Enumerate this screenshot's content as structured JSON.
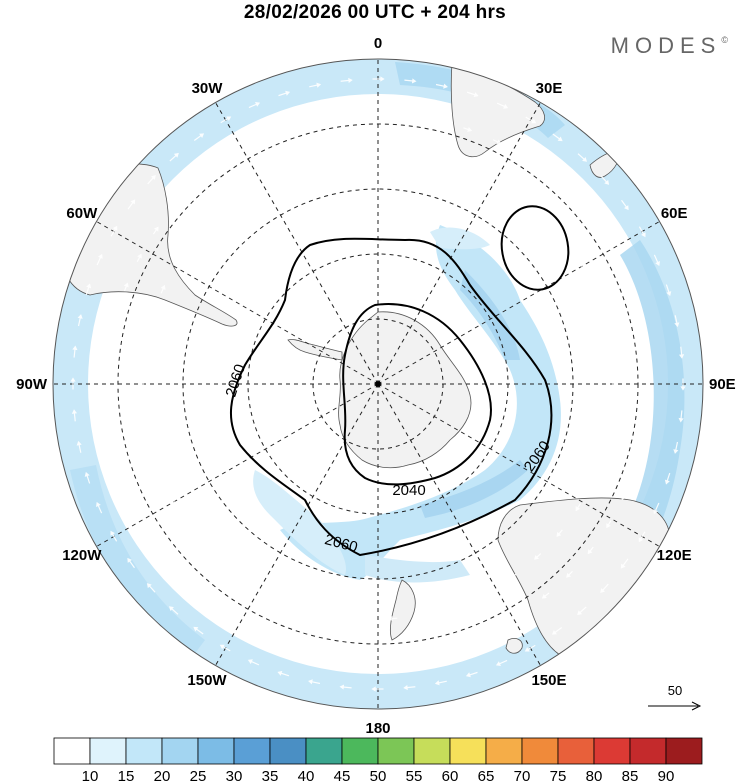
{
  "title": "28/02/2026  00 UTC  + 204 hrs",
  "brand": "MODES",
  "brand_mark": "©",
  "longitude_labels": [
    {
      "text": "0",
      "lon": 0
    },
    {
      "text": "30E",
      "lon": 30
    },
    {
      "text": "60E",
      "lon": 60
    },
    {
      "text": "90E",
      "lon": 90
    },
    {
      "text": "120E",
      "lon": 120
    },
    {
      "text": "150E",
      "lon": 150
    },
    {
      "text": "180",
      "lon": 180
    },
    {
      "text": "150W",
      "lon": -150
    },
    {
      "text": "120W",
      "lon": -120
    },
    {
      "text": "90W",
      "lon": -90
    },
    {
      "text": "60W",
      "lon": -60
    },
    {
      "text": "30W",
      "lon": -30
    }
  ],
  "contour_labels": [
    "2060",
    "2040",
    "2060",
    "2060"
  ],
  "vector_reference": "50",
  "colorbar": {
    "labels": [
      "10",
      "15",
      "20",
      "25",
      "30",
      "35",
      "40",
      "45",
      "50",
      "55",
      "60",
      "65",
      "70",
      "75",
      "80",
      "85",
      "90"
    ],
    "colors": [
      "#ffffff",
      "#dff3fc",
      "#c2e7f9",
      "#a3d5f1",
      "#7cbce6",
      "#5a9fd6",
      "#4a8fc4",
      "#3aa58e",
      "#4cb85c",
      "#7cc656",
      "#c6dd5a",
      "#f6e05a",
      "#f5ad48",
      "#f08a3a",
      "#e8603a",
      "#dc3a34",
      "#c42a2c",
      "#9c1c1e"
    ]
  },
  "colors": {
    "land": "#f3f3f3",
    "ocean": "#ffffff",
    "wind_light": "#dbf0fb",
    "wind_mid": "#bfe3f6",
    "wind_strong": "#a6d4ef",
    "grid": "#222222"
  }
}
